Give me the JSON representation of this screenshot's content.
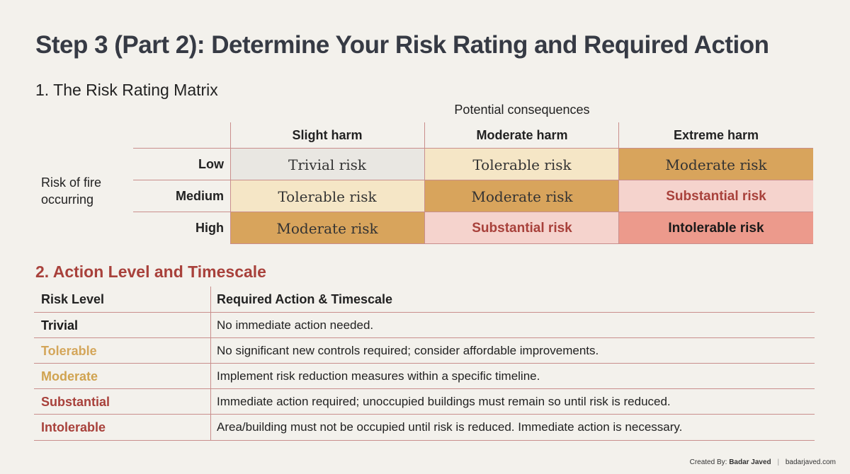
{
  "title": "Step 3 (Part 2): Determine Your Risk Rating and Required Action",
  "section1_title": "1. The Risk Rating Matrix",
  "matrix": {
    "column_axis_label": "Potential consequences",
    "row_axis_label": "Risk of fire occurring",
    "columns": [
      "Slight harm",
      "Moderate harm",
      "Extreme harm"
    ],
    "rows": [
      {
        "label": "Low",
        "cells": [
          "Trivial risk",
          "Tolerable risk",
          "Moderate risk"
        ]
      },
      {
        "label": "Medium",
        "cells": [
          "Tolerable risk",
          "Moderate risk",
          "Substantial risk"
        ]
      },
      {
        "label": "High",
        "cells": [
          "Moderate risk",
          "Substantial risk",
          "Intolerable risk"
        ]
      }
    ]
  },
  "colors": {
    "trivial_bg": "#e9e7e2",
    "tolerable_bg": "#f5e6c6",
    "moderate_bg": "#d8a45c",
    "substantial_bg": "#f5d3cd",
    "intolerable_bg": "#ec9a8c",
    "tolerable_text": "#d4a65a",
    "moderate_text": "#d0a350",
    "substantial_text": "#a8413b",
    "intolerable_text": "#a8413b",
    "rule": "#c98e8c"
  },
  "section2_title": "2. Action Level and Timescale",
  "action_table": {
    "headers": [
      "Risk Level",
      "Required Action & Timescale"
    ],
    "rows": [
      {
        "level": "Trivial",
        "action": "No immediate action needed."
      },
      {
        "level": "Tolerable",
        "action": "No significant new controls required; consider affordable improvements."
      },
      {
        "level": "Moderate",
        "action": "Implement risk reduction measures within a specific timeline."
      },
      {
        "level": "Substantial",
        "action": "Immediate action required; unoccupied buildings must remain so until risk is reduced."
      },
      {
        "level": "Intolerable",
        "action": "Area/building must not be occupied until risk is reduced. Immediate action is necessary."
      }
    ]
  },
  "footer": {
    "created_by_label": "Created By:",
    "author": "Badar Javed",
    "website": "badarjaved.com"
  }
}
